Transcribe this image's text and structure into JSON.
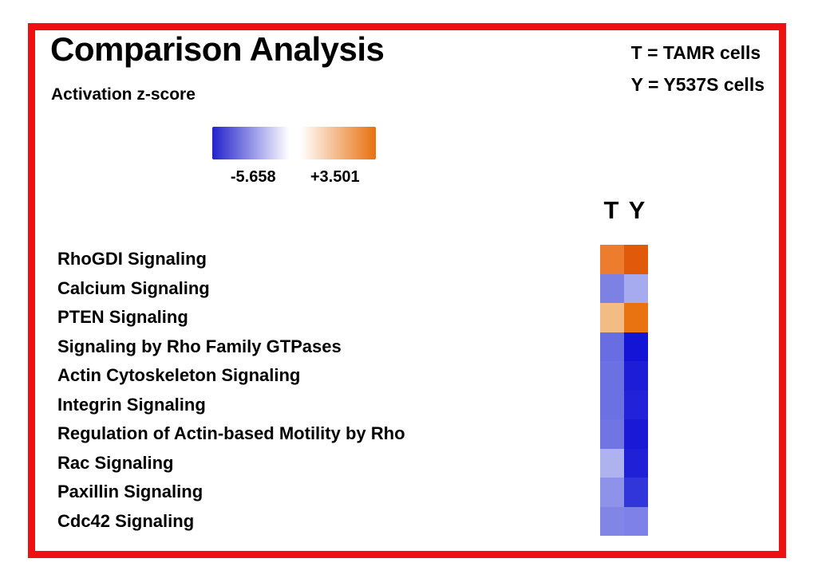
{
  "frame": {
    "border_color": "#ee1111"
  },
  "header": {
    "title": "Comparison Analysis",
    "subtitle": "Activation z-score",
    "key_line1": "T = TAMR cells",
    "key_line2": "Y = Y537S cells"
  },
  "chart_data": {
    "type": "heatmap",
    "title": "Comparison Analysis",
    "subtitle": "Activation z-score",
    "columns": [
      "T",
      "Y"
    ],
    "column_key": {
      "T": "TAMR cells",
      "Y": "Y537S cells"
    },
    "legend_position": "top",
    "scale": {
      "label": "Activation z-score",
      "min": -5.658,
      "max": 3.501,
      "min_label": "-5.658",
      "max_label": "+3.501",
      "min_color": "#2222cc",
      "mid_color": "#ffffff",
      "max_color": "#e8700f"
    },
    "rows": [
      {
        "label": "RhoGDI Signaling",
        "values": [
          2.8,
          3.5
        ],
        "colors": [
          "#ed7d2e",
          "#e1590b"
        ]
      },
      {
        "label": "Calcium Signaling",
        "values": [
          -2.9,
          -1.7
        ],
        "colors": [
          "#7d81e3",
          "#a6aaee"
        ]
      },
      {
        "label": "PTEN Signaling",
        "values": [
          1.3,
          3.1
        ],
        "colors": [
          "#f4bc85",
          "#e97311"
        ]
      },
      {
        "label": "Signaling by Rho Family GTPases",
        "values": [
          -3.3,
          -5.7
        ],
        "colors": [
          "#686de2",
          "#1414d6"
        ]
      },
      {
        "label": "Actin Cytoskeleton Signaling",
        "values": [
          -3.2,
          -5.5
        ],
        "colors": [
          "#6b70e2",
          "#1d1dd7"
        ]
      },
      {
        "label": "Integrin Signaling",
        "values": [
          -3.2,
          -5.4
        ],
        "colors": [
          "#6b70e2",
          "#2222d8"
        ]
      },
      {
        "label": "Regulation of Actin-based Motility by Rho",
        "values": [
          -3.1,
          -5.5
        ],
        "colors": [
          "#7175e3",
          "#1a1ad6"
        ]
      },
      {
        "label": "Rac Signaling",
        "values": [
          -1.6,
          -5.4
        ],
        "colors": [
          "#aeb2ef",
          "#2020d7"
        ]
      },
      {
        "label": "Paxillin Signaling",
        "values": [
          -2.4,
          -4.8
        ],
        "colors": [
          "#8e92e9",
          "#3136da"
        ]
      },
      {
        "label": "Cdc42 Signaling",
        "values": [
          -2.8,
          -2.9
        ],
        "colors": [
          "#8185e6",
          "#7e82e8"
        ]
      }
    ]
  }
}
